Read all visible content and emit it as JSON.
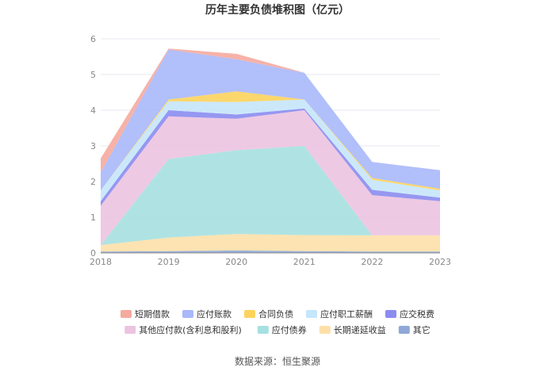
{
  "chart_data": {
    "type": "area",
    "stacked": true,
    "title": "历年主要负债堆积图（亿元）",
    "x": [
      "2018",
      "2019",
      "2020",
      "2021",
      "2022",
      "2023"
    ],
    "ylim": [
      0,
      6
    ],
    "yticks": [
      0,
      1,
      2,
      3,
      4,
      5,
      6
    ],
    "grid": true,
    "legend_position": "bottom",
    "series": [
      {
        "name": "其它",
        "color": "#8fa8d8",
        "values": [
          0.04,
          0.05,
          0.07,
          0.05,
          0.04,
          0.04
        ]
      },
      {
        "name": "长期递延收益",
        "color": "#fde0a8",
        "values": [
          0.18,
          0.38,
          0.46,
          0.45,
          0.45,
          0.45
        ]
      },
      {
        "name": "应付债券",
        "color": "#a6e0e0",
        "values": [
          0.0,
          2.2,
          2.35,
          2.5,
          0.0,
          0.0
        ]
      },
      {
        "name": "其他应付款(含利息和股利)",
        "color": "#ecc3e0",
        "values": [
          1.1,
          1.2,
          0.88,
          1.0,
          1.13,
          0.96
        ]
      },
      {
        "name": "应交税费",
        "color": "#8b8cf0",
        "values": [
          0.13,
          0.17,
          0.12,
          0.05,
          0.15,
          0.1
        ]
      },
      {
        "name": "应付职工薪酬",
        "color": "#c5e6fb",
        "values": [
          0.3,
          0.25,
          0.35,
          0.25,
          0.28,
          0.2
        ]
      },
      {
        "name": "合同负债",
        "color": "#fcd35d",
        "values": [
          0.0,
          0.05,
          0.3,
          0.0,
          0.05,
          0.05
        ]
      },
      {
        "name": "应付账款",
        "color": "#a8b8fa",
        "values": [
          0.5,
          1.4,
          0.9,
          0.75,
          0.45,
          0.52
        ]
      },
      {
        "name": "短期借款",
        "color": "#f5aaa0",
        "values": [
          0.4,
          0.03,
          0.15,
          0.0,
          0.0,
          0.0
        ]
      }
    ],
    "legend_order": [
      "短期借款",
      "应付账款",
      "合同负债",
      "应付职工薪酬",
      "应交税费",
      "其他应付款(含利息和股利)",
      "应付债券",
      "长期递延收益",
      "其它"
    ]
  },
  "source": "数据来源：恒生聚源"
}
